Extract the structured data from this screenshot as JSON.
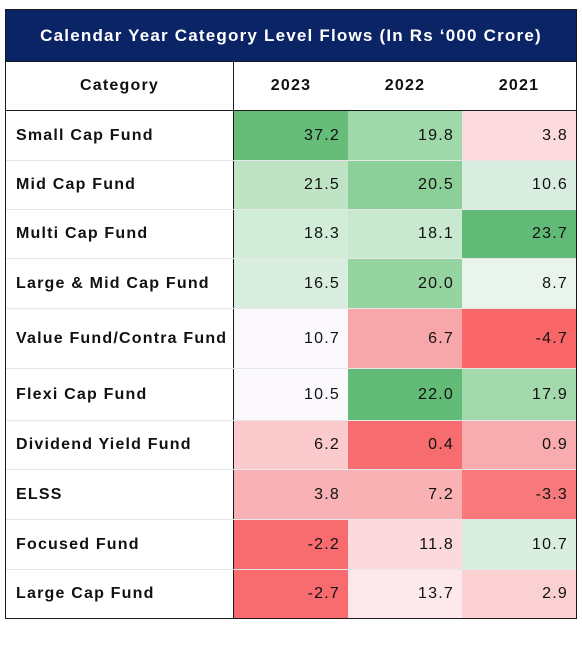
{
  "chart_data": {
    "type": "table",
    "title": "Calendar Year Category Level Flows (In Rs ‘000 Crore)",
    "columns": [
      "Category",
      "2023",
      "2022",
      "2021"
    ],
    "rows": [
      {
        "category": "Small Cap Fund",
        "values": [
          37.2,
          19.8,
          3.8
        ],
        "display": [
          "37.2",
          "19.8",
          "3.8"
        ],
        "colors": [
          "#66bd7a",
          "#9fd8a9",
          "#fcdadd"
        ]
      },
      {
        "category": "Mid Cap Fund",
        "values": [
          21.5,
          20.5,
          10.6
        ],
        "display": [
          "21.5",
          "20.5",
          "10.6"
        ],
        "colors": [
          "#bfe4c5",
          "#8dcf99",
          "#d9ede0"
        ]
      },
      {
        "category": "Multi Cap Fund",
        "values": [
          18.3,
          18.1,
          23.7
        ],
        "display": [
          "18.3",
          "18.1",
          "23.7"
        ],
        "colors": [
          "#d1ecd7",
          "#c8e8cf",
          "#61bb76"
        ]
      },
      {
        "category": "Large & Mid Cap Fund",
        "values": [
          16.5,
          20.0,
          8.7
        ],
        "display": [
          "16.5",
          "20.0",
          "8.7"
        ],
        "colors": [
          "#d9eedf",
          "#95d3a1",
          "#e8f4ec"
        ]
      },
      {
        "category": "Value Fund/Contra Fund",
        "values": [
          10.7,
          6.7,
          -4.7
        ],
        "display": [
          "10.7",
          "6.7",
          "-4.7"
        ],
        "colors": [
          "#fbf9fe",
          "#f7a7aa",
          "#f86669"
        ]
      },
      {
        "category": "Flexi Cap Fund",
        "values": [
          10.5,
          22.0,
          17.9
        ],
        "display": [
          "10.5",
          "22.0",
          "17.9"
        ],
        "colors": [
          "#fbf9fe",
          "#62bb77",
          "#a3d9ad"
        ]
      },
      {
        "category": "Dividend Yield Fund",
        "values": [
          6.2,
          0.4,
          0.9
        ],
        "display": [
          "6.2",
          "0.4",
          "0.9"
        ],
        "colors": [
          "#fbcacd",
          "#f76c6f",
          "#f9acaf"
        ]
      },
      {
        "category": "ELSS",
        "values": [
          3.8,
          7.2,
          -3.3
        ],
        "display": [
          "3.8",
          "7.2",
          "-3.3"
        ],
        "colors": [
          "#f8b2b5",
          "#f9b1b3",
          "#f7797c"
        ]
      },
      {
        "category": "Focused Fund",
        "values": [
          -2.2,
          11.8,
          10.7
        ],
        "display": [
          "-2.2",
          "11.8",
          "10.7"
        ],
        "colors": [
          "#f86c6f",
          "#fcd9dc",
          "#d9eedf"
        ]
      },
      {
        "category": "Large Cap Fund",
        "values": [
          -2.7,
          13.7,
          2.9
        ],
        "display": [
          "-2.7",
          "13.7",
          "2.9"
        ],
        "colors": [
          "#f86c6f",
          "#fde9ec",
          "#fbd0d3"
        ]
      }
    ]
  }
}
